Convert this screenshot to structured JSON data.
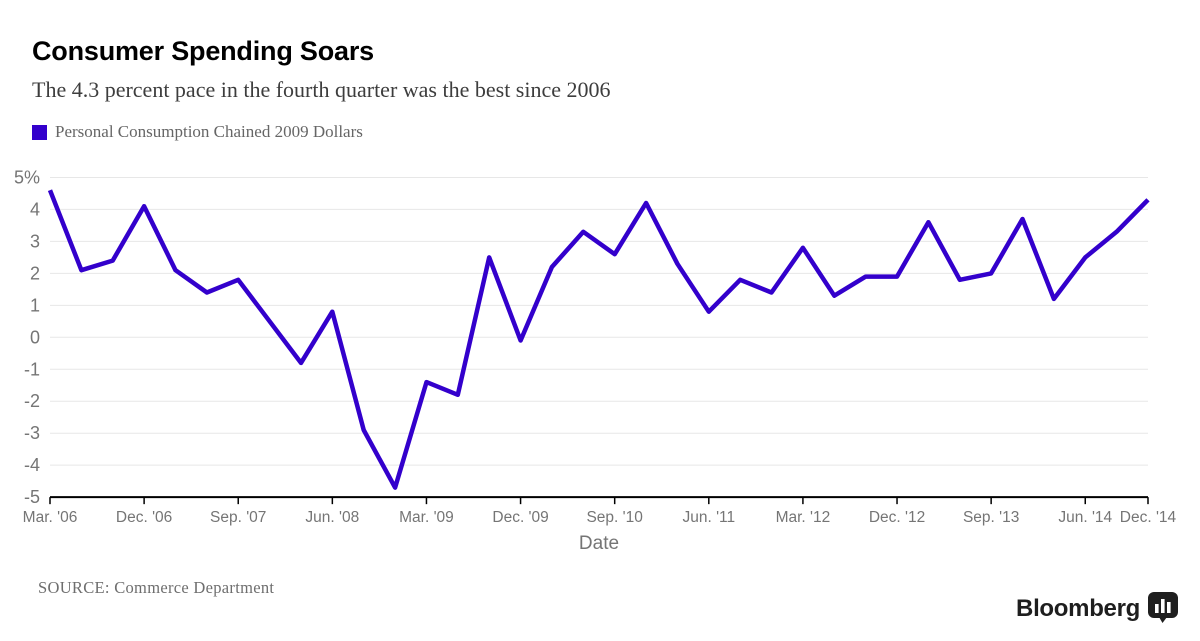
{
  "header": {
    "title": "Consumer Spending Soars",
    "subtitle": "The 4.3 percent pace in the fourth quarter was the best since 2006"
  },
  "legend": {
    "label": "Personal Consumption Chained 2009 Dollars",
    "swatch_color": "#3300CC"
  },
  "chart_data": {
    "type": "line",
    "title": "Consumer Spending Soars",
    "subtitle": "The 4.3 percent pace in the fourth quarter was the best since 2006",
    "xlabel": "Date",
    "ylabel": "",
    "ylim": [
      -5,
      5
    ],
    "grid": true,
    "legend_position": "top-left",
    "line_color": "#3300CC",
    "categories": [
      "Mar. '06",
      "Jun. '06",
      "Sep. '06",
      "Dec. '06",
      "Mar. '07",
      "Jun. '07",
      "Sep. '07",
      "Dec. '07",
      "Mar. '08",
      "Jun. '08",
      "Sep. '08",
      "Dec. '08",
      "Mar. '09",
      "Jun. '09",
      "Sep. '09",
      "Dec. '09",
      "Mar. '10",
      "Jun. '10",
      "Sep. '10",
      "Dec. '10",
      "Mar. '11",
      "Jun. '11",
      "Sep. '11",
      "Dec. '11",
      "Mar. '12",
      "Jun. '12",
      "Sep. '12",
      "Dec. '12",
      "Mar. '13",
      "Jun. '13",
      "Sep. '13",
      "Dec. '13",
      "Mar. '14",
      "Jun. '14",
      "Sep. '14",
      "Dec. '14"
    ],
    "series": [
      {
        "name": "Personal Consumption Chained 2009 Dollars",
        "values": [
          4.6,
          2.1,
          2.4,
          4.1,
          2.1,
          1.4,
          1.8,
          0.5,
          -0.8,
          0.8,
          -2.9,
          -4.7,
          -1.4,
          -1.8,
          2.5,
          -0.1,
          2.2,
          3.3,
          2.6,
          4.2,
          2.3,
          0.8,
          1.8,
          1.4,
          2.8,
          1.3,
          1.9,
          1.9,
          3.6,
          1.8,
          2.0,
          3.7,
          1.2,
          2.5,
          3.3,
          4.3
        ]
      }
    ],
    "xticks": [
      {
        "index": 0,
        "label": "Mar. '06"
      },
      {
        "index": 3,
        "label": "Dec. '06"
      },
      {
        "index": 6,
        "label": "Sep. '07"
      },
      {
        "index": 9,
        "label": "Jun. '08"
      },
      {
        "index": 12,
        "label": "Mar. '09"
      },
      {
        "index": 15,
        "label": "Dec. '09"
      },
      {
        "index": 18,
        "label": "Sep. '10"
      },
      {
        "index": 21,
        "label": "Jun. '11"
      },
      {
        "index": 24,
        "label": "Mar. '12"
      },
      {
        "index": 27,
        "label": "Dec. '12"
      },
      {
        "index": 30,
        "label": "Sep. '13"
      },
      {
        "index": 33,
        "label": "Jun. '14"
      },
      {
        "index": 35,
        "label": "Dec. '14"
      }
    ],
    "yticks": [
      {
        "value": 5,
        "label": "5%"
      },
      {
        "value": 4,
        "label": "4"
      },
      {
        "value": 3,
        "label": "3"
      },
      {
        "value": 2,
        "label": "2"
      },
      {
        "value": 1,
        "label": "1"
      },
      {
        "value": 0,
        "label": "0"
      },
      {
        "value": -1,
        "label": "-1"
      },
      {
        "value": -2,
        "label": "-2"
      },
      {
        "value": -3,
        "label": "-3"
      },
      {
        "value": -4,
        "label": "-4"
      },
      {
        "value": -5,
        "label": "-5"
      }
    ]
  },
  "footer": {
    "source": "SOURCE: Commerce Department",
    "brand": "Bloomberg"
  }
}
